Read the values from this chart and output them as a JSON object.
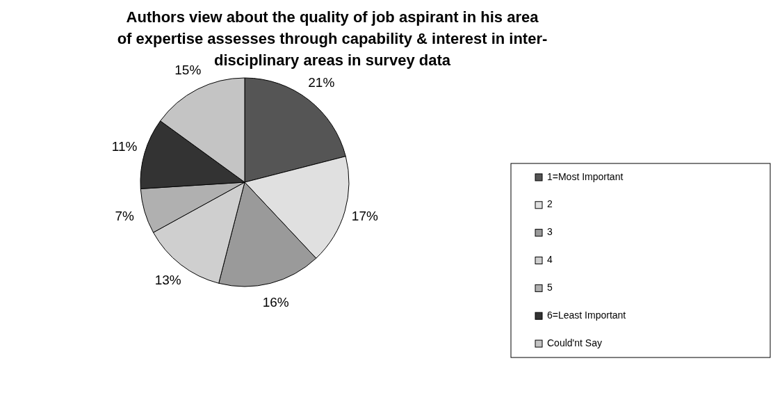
{
  "chart_data": {
    "type": "pie",
    "title": "Authors view about the quality of job aspirant in his area\nof expertise assesses through capability & interest in inter-\ndisciplinary areas  in survey data",
    "categories": [
      "1=Most Important",
      "2",
      "3",
      "4",
      "5",
      "6=Least Important",
      "Could'nt Say"
    ],
    "values": [
      21,
      17,
      16,
      13,
      7,
      11,
      15
    ],
    "colors": [
      "#555555",
      "#e0e0e0",
      "#9a9a9a",
      "#cfcfcf",
      "#b0b0b0",
      "#333333",
      "#c4c4c4"
    ],
    "legend": "right",
    "value_labels": [
      "21%",
      "17%",
      "16%",
      "13%",
      "7%",
      "11%",
      "15%"
    ]
  }
}
